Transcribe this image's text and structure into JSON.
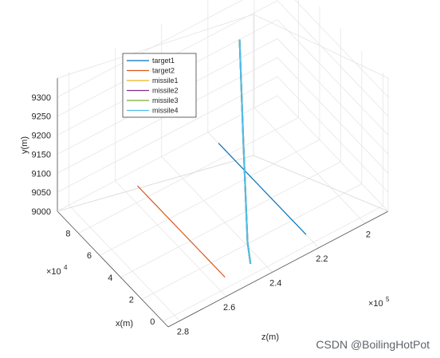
{
  "chart_data": {
    "type": "line",
    "projection": "3d",
    "title": "",
    "ylabel": "y(m)",
    "xlabel": "x(m)",
    "zlabel": "z(m)",
    "x_axis_multiplier": "×10^4",
    "z_axis_multiplier": "×10^5",
    "ylim": [
      9000,
      9350
    ],
    "xlim": [
      -0.5,
      10
    ],
    "zlim": [
      1.9,
      2.85
    ],
    "y_ticks": [
      "9000",
      "9050",
      "9100",
      "9150",
      "9200",
      "9250",
      "9300"
    ],
    "x_ticks": [
      "0",
      "2",
      "4",
      "6",
      "8"
    ],
    "z_ticks": [
      "2",
      "2.2",
      "2.4",
      "2.6",
      "2.8"
    ],
    "grid": true,
    "legend_position": "top-left",
    "series": [
      {
        "name": "target1",
        "color": "#0072BD",
        "points": [
          [
            9.0,
            9000,
            2.2
          ],
          [
            0.7,
            9000,
            2.2
          ]
        ]
      },
      {
        "name": "target2",
        "color": "#D95319",
        "points": [
          [
            9.0,
            9000,
            2.55
          ],
          [
            0.7,
            9000,
            2.55
          ]
        ]
      },
      {
        "name": "missile1",
        "color": "#EDB120",
        "points": [
          [
            0.7,
            9000,
            2.44
          ],
          [
            1.2,
            9040,
            2.43
          ],
          [
            4.0,
            9180,
            2.32
          ],
          [
            7.0,
            9330,
            2.2
          ]
        ]
      },
      {
        "name": "missile2",
        "color": "#7E2F8E",
        "points": [
          [
            0.7,
            9000,
            2.44
          ],
          [
            1.2,
            9040,
            2.43
          ],
          [
            4.0,
            9180,
            2.32
          ],
          [
            7.0,
            9330,
            2.2
          ]
        ]
      },
      {
        "name": "missile3",
        "color": "#77AC30",
        "points": [
          [
            0.7,
            9000,
            2.44
          ],
          [
            1.2,
            9040,
            2.43
          ],
          [
            4.0,
            9180,
            2.32
          ],
          [
            7.0,
            9330,
            2.2
          ]
        ]
      },
      {
        "name": "missile4",
        "color": "#4DBEEE",
        "points": [
          [
            0.7,
            9000,
            2.44
          ],
          [
            1.2,
            9040,
            2.43
          ],
          [
            4.0,
            9180,
            2.32
          ],
          [
            7.0,
            9330,
            2.2
          ]
        ]
      }
    ]
  },
  "watermark": "CSDN @BoilingHotPot"
}
